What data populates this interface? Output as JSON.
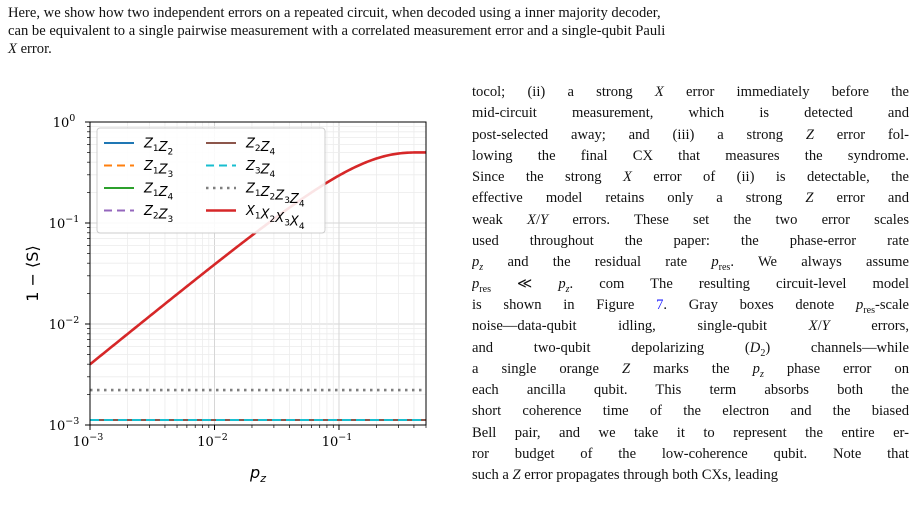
{
  "intro": {
    "lines": [
      "Here, we show how two independent errors on a repeated circuit, when decoded using a inner majority decoder,",
      "can be equivalent to a single pairwise measurement with a correlated measurement error and a single-qubit Pauli",
      "X error."
    ]
  },
  "body": {
    "lines": [
      "tocol; (ii) a strong X error immediately before the",
      "mid-circuit measurement, which is detected and",
      "post-selected away; and (iii) a strong Z error fol-",
      "lowing the final CX that measures the syndrome.",
      "Since the strong X error of (ii) is detectable, the",
      "effective model retains only a strong Z error and",
      "weak X/Y errors. These set the two error scales",
      "used throughout the paper: the phase-error rate",
      "p_z and the residual rate p_res. We always assume",
      "p_res ≪ p_z. com The resulting circuit-level model",
      "is shown in Figure 7. Gray boxes denote p_res-scale",
      "noise—data-qubit idling, single-qubit X/Y errors,",
      "and two-qubit depolarizing (D2) channels—while",
      "a single orange Z marks the p_z phase error on",
      "each ancilla qubit. This term absorbs both the",
      "short coherence time of the electron and the biased",
      "Bell pair, and we take it to represent the entire er-",
      "ror budget of the low-coherence qubit. Note that",
      "such a Z error propagates through both CXs, leading"
    ],
    "figure_ref": "7"
  },
  "chart_data": {
    "type": "line",
    "xscale": "log",
    "yscale": "log",
    "xlim": [
      0.001,
      0.5
    ],
    "ylim": [
      0.001,
      1.0
    ],
    "xlabel": "p_z",
    "ylabel": "1 − ⟨S⟩",
    "xticks": [
      "10^-3",
      "10^-2",
      "10^-1"
    ],
    "yticks": [
      "10^-3",
      "10^-2",
      "10^-1",
      "10^0"
    ],
    "grid": true,
    "legend_position": "top-left",
    "series": [
      {
        "name": "Z1Z2",
        "label_parts": [
          [
            "Z",
            "1"
          ],
          [
            "Z",
            "2"
          ]
        ],
        "color": "#1f77b4",
        "style": "solid",
        "kind": "const",
        "value": 0.00112
      },
      {
        "name": "Z1Z3",
        "label_parts": [
          [
            "Z",
            "1"
          ],
          [
            "Z",
            "3"
          ]
        ],
        "color": "#ff7f0e",
        "style": "dashed",
        "kind": "const",
        "value": 0.00112
      },
      {
        "name": "Z1Z4",
        "label_parts": [
          [
            "Z",
            "1"
          ],
          [
            "Z",
            "4"
          ]
        ],
        "color": "#2ca02c",
        "style": "solid",
        "kind": "const",
        "value": 0.00112
      },
      {
        "name": "Z2Z3",
        "label_parts": [
          [
            "Z",
            "2"
          ],
          [
            "Z",
            "3"
          ]
        ],
        "color": "#9467bd",
        "style": "dashed",
        "kind": "const",
        "value": 0.00112
      },
      {
        "name": "Z2Z4",
        "label_parts": [
          [
            "Z",
            "2"
          ],
          [
            "Z",
            "4"
          ]
        ],
        "color": "#8c564b",
        "style": "solid",
        "kind": "const",
        "value": 0.00112
      },
      {
        "name": "Z3Z4",
        "label_parts": [
          [
            "Z",
            "3"
          ],
          [
            "Z",
            "4"
          ]
        ],
        "color": "#17becf",
        "style": "dashed",
        "kind": "const",
        "value": 0.00112
      },
      {
        "name": "Z1Z2Z3Z4",
        "label_parts": [
          [
            "Z",
            "1"
          ],
          [
            "Z",
            "2"
          ],
          [
            "Z",
            "3"
          ],
          [
            "Z",
            "4"
          ]
        ],
        "color": "#7f7f7f",
        "style": "dotted",
        "kind": "const",
        "value": 0.00222
      },
      {
        "name": "X1X2X3X4",
        "label_parts": [
          [
            "X",
            "1"
          ],
          [
            "X",
            "2"
          ],
          [
            "X",
            "3"
          ],
          [
            "X",
            "4"
          ]
        ],
        "color": "#d62728",
        "style": "solid",
        "kind": "phase",
        "formula": "(1-(1-2p)^4)/2"
      }
    ]
  }
}
